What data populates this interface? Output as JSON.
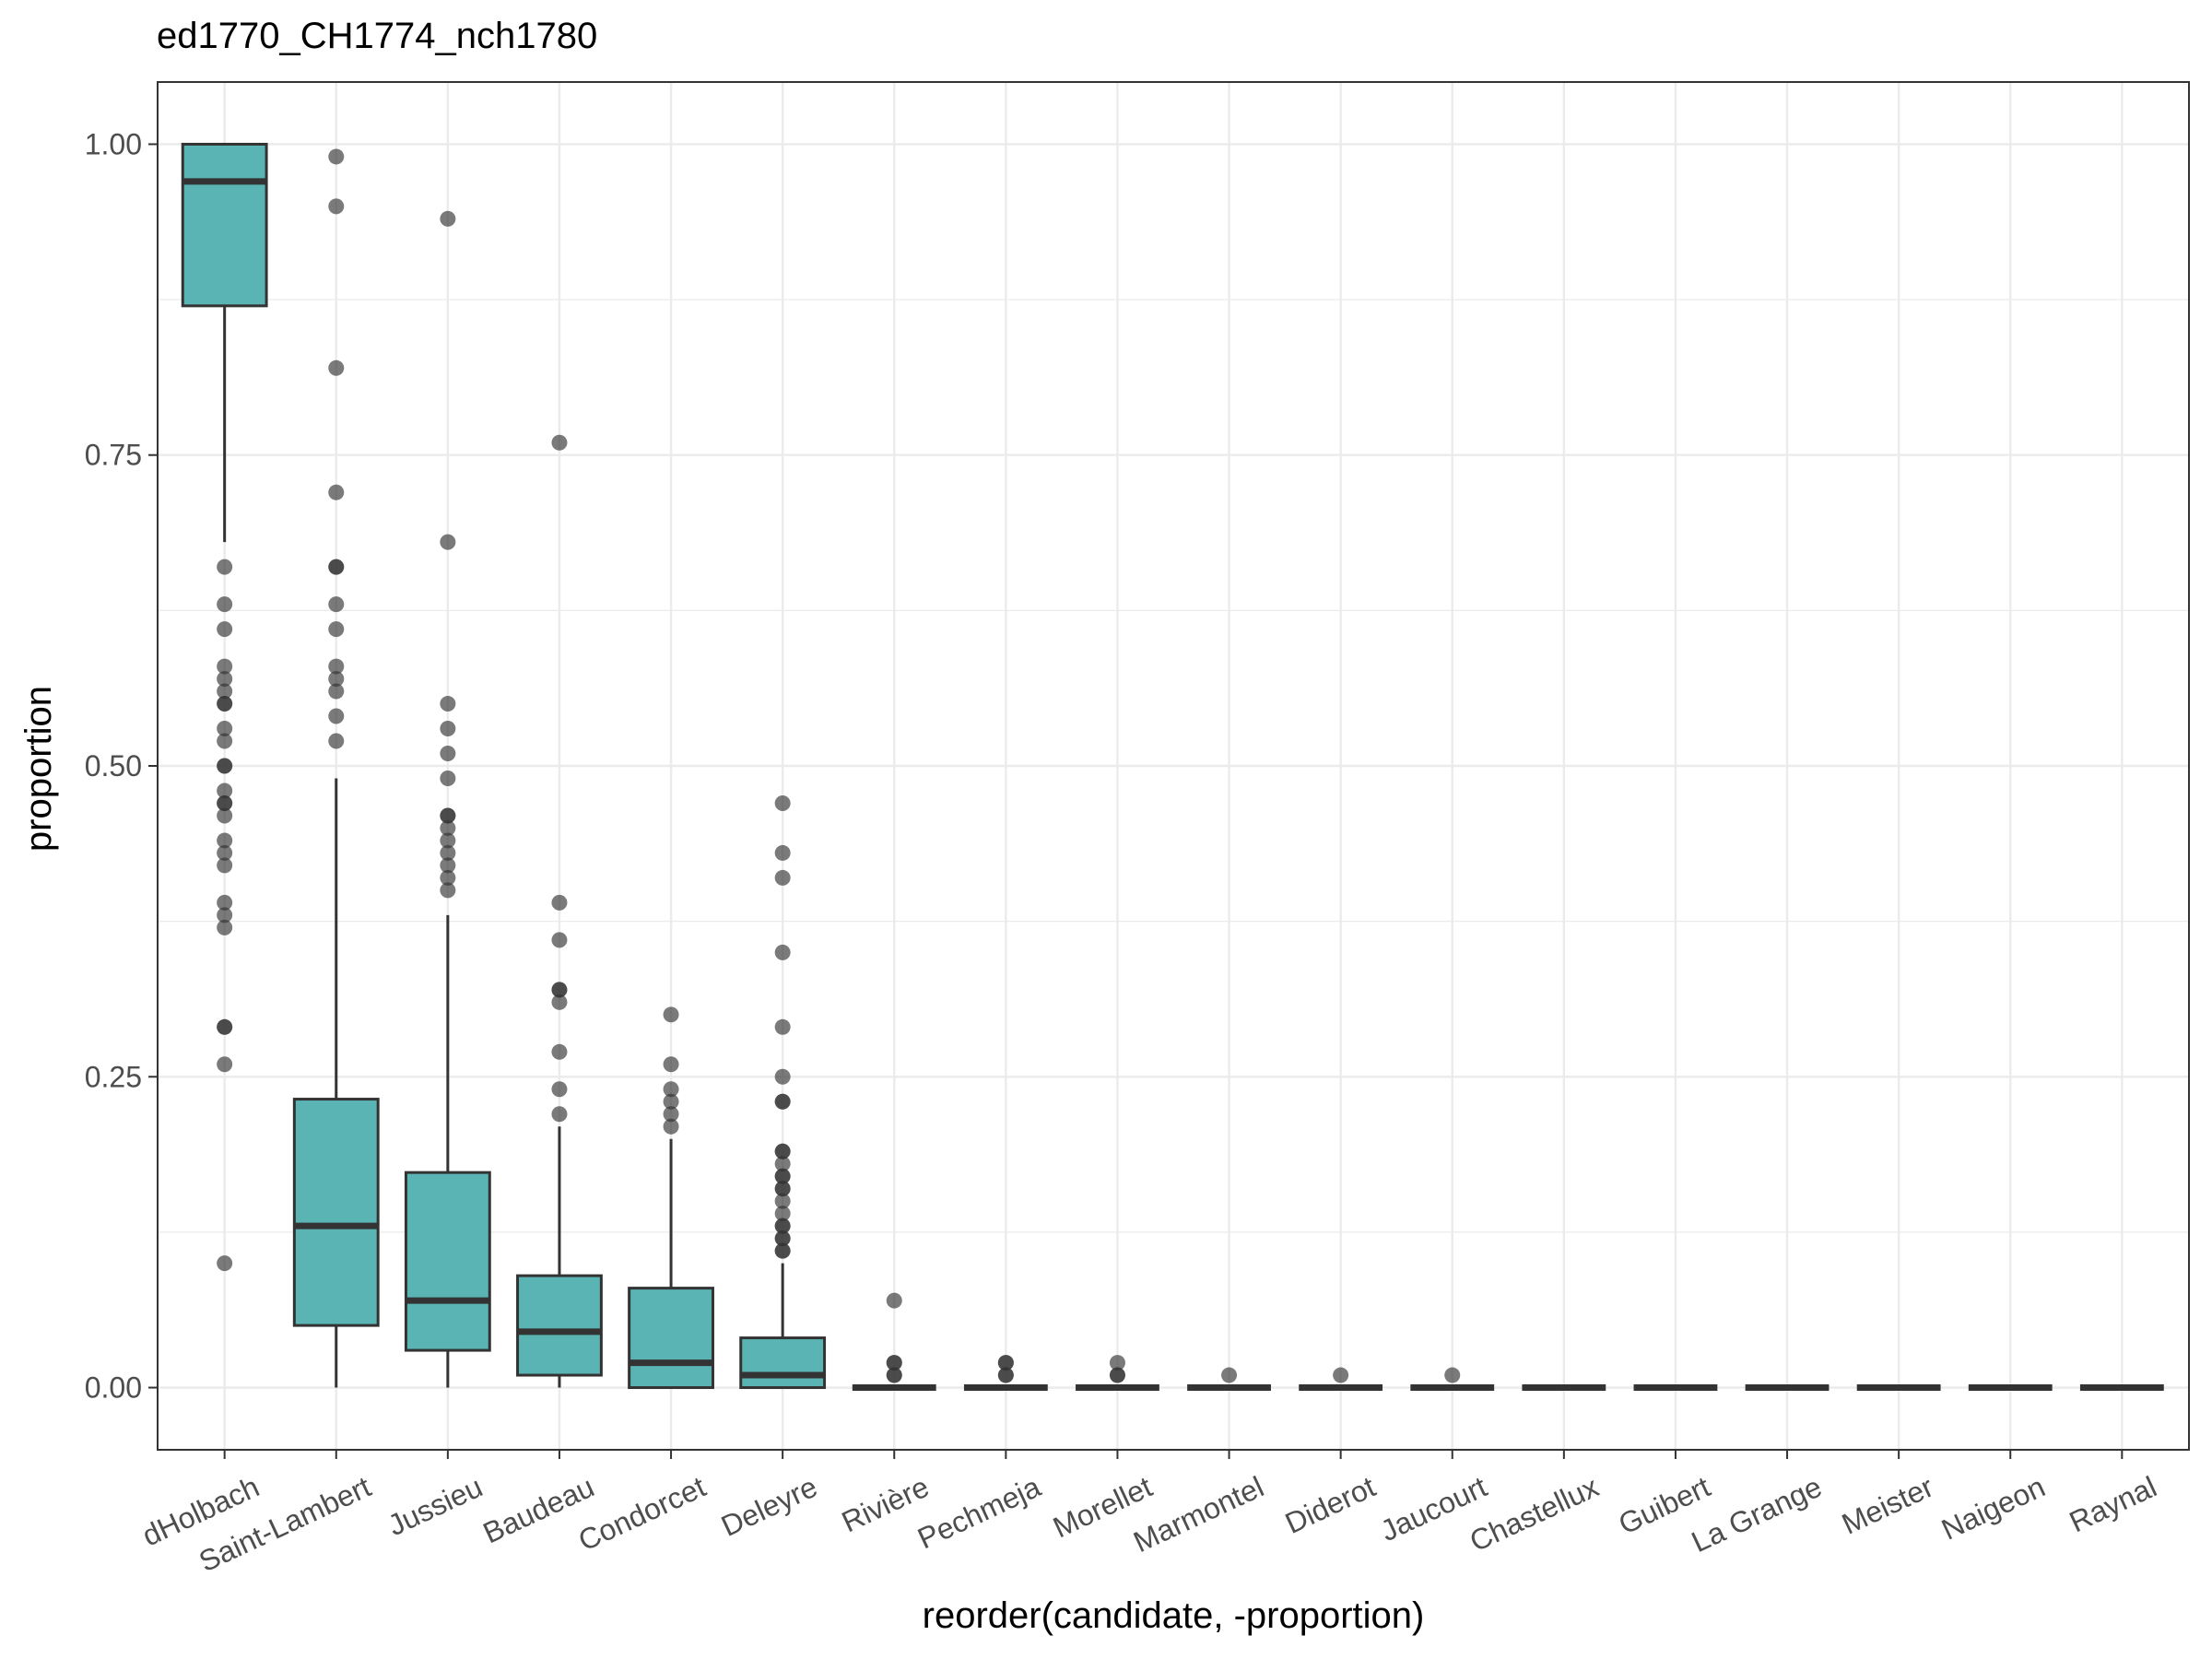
{
  "chart_data": {
    "type": "box",
    "title": "ed1770_CH1774_nch1780",
    "xlabel": "reorder(candidate, -proportion)",
    "ylabel": "proportion",
    "ylim": [
      -0.05,
      1.05
    ],
    "yticks": [
      0.0,
      0.25,
      0.5,
      0.75,
      1.0
    ],
    "ytick_labels": [
      "0.00",
      "0.25",
      "0.50",
      "0.75",
      "1.00"
    ],
    "grid": true,
    "legend": "none",
    "box_fill_color": "#5ab4b4",
    "box_line_color": "#333333",
    "outlier_color": "#333333",
    "categories": [
      "dHolbach",
      "Saint-Lambert",
      "Jussieu",
      "Baudeau",
      "Condorcet",
      "Deleyre",
      "Rivière",
      "Pechmeja",
      "Morellet",
      "Marmontel",
      "Diderot",
      "Jaucourt",
      "Chastellux",
      "Guibert",
      "La Grange",
      "Meister",
      "Naigeon",
      "Raynal"
    ],
    "boxes": [
      {
        "name": "dHolbach",
        "lower_whisker": 0.68,
        "q1": 0.87,
        "median": 0.97,
        "q3": 1.0,
        "upper_whisker": 1.0,
        "outliers": [
          0.66,
          0.63,
          0.61,
          0.58,
          0.57,
          0.56,
          0.55,
          0.55,
          0.53,
          0.52,
          0.5,
          0.5,
          0.48,
          0.47,
          0.47,
          0.46,
          0.44,
          0.43,
          0.42,
          0.39,
          0.38,
          0.37,
          0.29,
          0.29,
          0.26,
          0.1
        ]
      },
      {
        "name": "Saint-Lambert",
        "lower_whisker": 0.0,
        "q1": 0.05,
        "median": 0.13,
        "q3": 0.232,
        "upper_whisker": 0.49,
        "outliers": [
          0.99,
          0.95,
          0.82,
          0.72,
          0.66,
          0.66,
          0.63,
          0.61,
          0.58,
          0.57,
          0.56,
          0.54,
          0.52
        ]
      },
      {
        "name": "Jussieu",
        "lower_whisker": 0.0,
        "q1": 0.03,
        "median": 0.07,
        "q3": 0.173,
        "upper_whisker": 0.38,
        "outliers": [
          0.94,
          0.68,
          0.55,
          0.53,
          0.51,
          0.49,
          0.46,
          0.46,
          0.45,
          0.44,
          0.43,
          0.42,
          0.41,
          0.4
        ]
      },
      {
        "name": "Baudeau",
        "lower_whisker": 0.0,
        "q1": 0.01,
        "median": 0.045,
        "q3": 0.09,
        "upper_whisker": 0.21,
        "outliers": [
          0.76,
          0.39,
          0.36,
          0.32,
          0.32,
          0.31,
          0.27,
          0.24,
          0.22
        ]
      },
      {
        "name": "Condorcet",
        "lower_whisker": 0.0,
        "q1": 0.0,
        "median": 0.02,
        "q3": 0.08,
        "upper_whisker": 0.2,
        "outliers": [
          0.3,
          0.26,
          0.24,
          0.23,
          0.22,
          0.21
        ]
      },
      {
        "name": "Deleyre",
        "lower_whisker": 0.0,
        "q1": 0.0,
        "median": 0.01,
        "q3": 0.04,
        "upper_whisker": 0.1,
        "outliers": [
          0.47,
          0.43,
          0.41,
          0.35,
          0.29,
          0.25,
          0.23,
          0.23,
          0.19,
          0.19,
          0.18,
          0.17,
          0.17,
          0.16,
          0.16,
          0.15,
          0.14,
          0.13,
          0.13,
          0.12,
          0.12,
          0.11,
          0.11
        ]
      },
      {
        "name": "Rivière",
        "lower_whisker": 0.0,
        "q1": 0.0,
        "median": 0.0,
        "q3": 0.0,
        "upper_whisker": 0.0,
        "outliers": [
          0.07,
          0.02,
          0.02,
          0.01,
          0.01
        ]
      },
      {
        "name": "Pechmeja",
        "lower_whisker": 0.0,
        "q1": 0.0,
        "median": 0.0,
        "q3": 0.0,
        "upper_whisker": 0.0,
        "outliers": [
          0.02,
          0.02,
          0.01,
          0.01
        ]
      },
      {
        "name": "Morellet",
        "lower_whisker": 0.0,
        "q1": 0.0,
        "median": 0.0,
        "q3": 0.0,
        "upper_whisker": 0.0,
        "outliers": [
          0.02,
          0.01,
          0.01
        ]
      },
      {
        "name": "Marmontel",
        "lower_whisker": 0.0,
        "q1": 0.0,
        "median": 0.0,
        "q3": 0.0,
        "upper_whisker": 0.0,
        "outliers": [
          0.01
        ]
      },
      {
        "name": "Diderot",
        "lower_whisker": 0.0,
        "q1": 0.0,
        "median": 0.0,
        "q3": 0.0,
        "upper_whisker": 0.0,
        "outliers": [
          0.01
        ]
      },
      {
        "name": "Jaucourt",
        "lower_whisker": 0.0,
        "q1": 0.0,
        "median": 0.0,
        "q3": 0.0,
        "upper_whisker": 0.0,
        "outliers": [
          0.01
        ]
      },
      {
        "name": "Chastellux",
        "lower_whisker": 0.0,
        "q1": 0.0,
        "median": 0.0,
        "q3": 0.0,
        "upper_whisker": 0.0,
        "outliers": []
      },
      {
        "name": "Guibert",
        "lower_whisker": 0.0,
        "q1": 0.0,
        "median": 0.0,
        "q3": 0.0,
        "upper_whisker": 0.0,
        "outliers": []
      },
      {
        "name": "La Grange",
        "lower_whisker": 0.0,
        "q1": 0.0,
        "median": 0.0,
        "q3": 0.0,
        "upper_whisker": 0.0,
        "outliers": []
      },
      {
        "name": "Meister",
        "lower_whisker": 0.0,
        "q1": 0.0,
        "median": 0.0,
        "q3": 0.0,
        "upper_whisker": 0.0,
        "outliers": []
      },
      {
        "name": "Naigeon",
        "lower_whisker": 0.0,
        "q1": 0.0,
        "median": 0.0,
        "q3": 0.0,
        "upper_whisker": 0.0,
        "outliers": []
      },
      {
        "name": "Raynal",
        "lower_whisker": 0.0,
        "q1": 0.0,
        "median": 0.0,
        "q3": 0.0,
        "upper_whisker": 0.0,
        "outliers": []
      }
    ]
  }
}
